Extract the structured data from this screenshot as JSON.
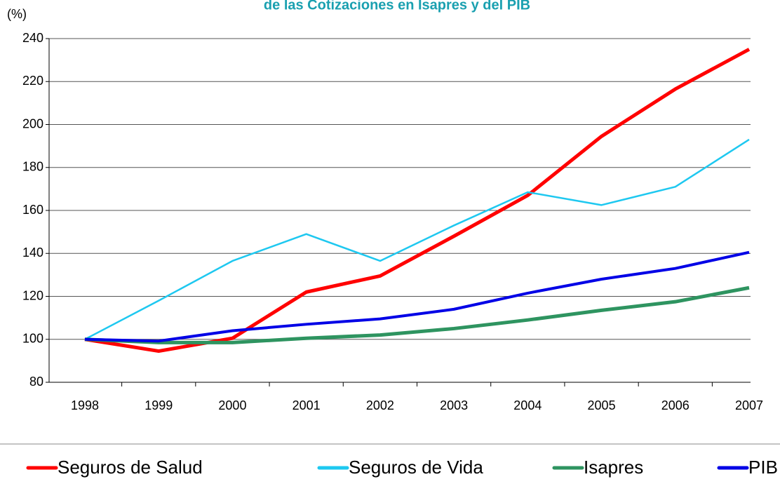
{
  "chart_data": {
    "type": "line",
    "title": "de las Cotizaciones en Isapres y del PIB",
    "ylabel": "(%)",
    "categories": [
      "1998",
      "1999",
      "2000",
      "2001",
      "2002",
      "2003",
      "2004",
      "2005",
      "2006",
      "2007"
    ],
    "series": [
      {
        "name": "Seguros de Salud",
        "color": "#ff0000",
        "values": [
          100,
          94.5,
          100.5,
          122,
          129.5,
          148,
          167,
          194.5,
          216.5,
          235
        ]
      },
      {
        "name": "Seguros de Vida",
        "color": "#1ec8f0",
        "values": [
          100,
          118,
          136.5,
          149,
          136.5,
          153,
          168.5,
          162.5,
          171,
          193
        ]
      },
      {
        "name": "Isapres",
        "color": "#2e9460",
        "values": [
          100,
          98.5,
          98.5,
          100.5,
          102,
          105,
          109,
          113.5,
          117.5,
          124
        ]
      },
      {
        "name": "PIB",
        "color": "#0000e6",
        "values": [
          100,
          99.2,
          104,
          107,
          109.5,
          114,
          121.5,
          128,
          133,
          140.5
        ]
      }
    ],
    "ylim": [
      80,
      240
    ],
    "yticks": [
      80,
      100,
      120,
      140,
      160,
      180,
      200,
      220,
      240
    ],
    "grid": true,
    "legend": "bottom"
  }
}
